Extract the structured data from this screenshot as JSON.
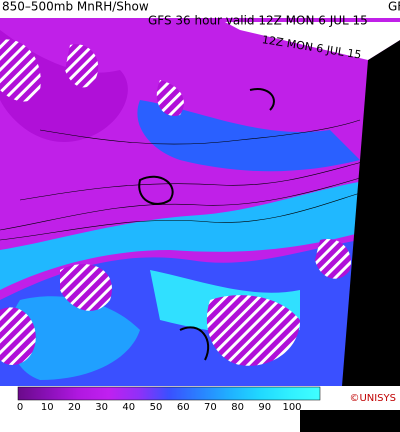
{
  "header": {
    "title": "850–500mb MnRH/Show",
    "title_cut": "GF",
    "subtitle": "GFS 36 hour valid 12Z MON  6 JUL 15",
    "rotated_label": "12Z MON  6 JUL 15"
  },
  "colorbar": {
    "ticks": [
      0,
      10,
      20,
      30,
      40,
      50,
      60,
      70,
      80,
      90,
      100
    ],
    "colors": [
      "#6a0a8a",
      "#8a10b8",
      "#b018e0",
      "#c020f0",
      "#9030f8",
      "#3a50ff",
      "#2a80ff",
      "#20b0ff",
      "#20d8ff",
      "#30f0ff",
      "#40ffff"
    ]
  },
  "credit": "©UNISYS"
}
